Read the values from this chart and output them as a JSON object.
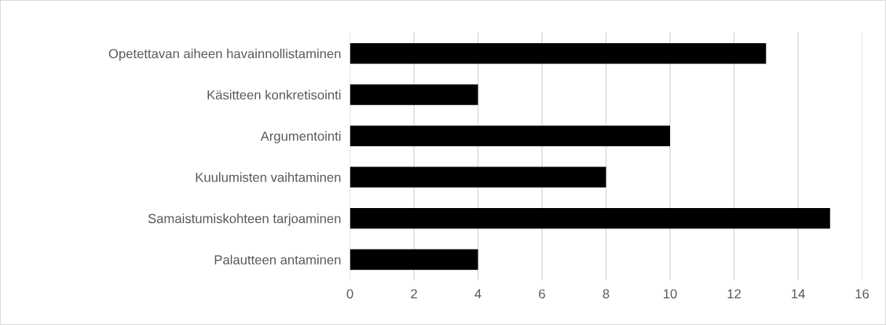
{
  "chart_data": {
    "type": "bar",
    "orientation": "horizontal",
    "categories": [
      "Opetettavan aiheen havainnollistaminen",
      "Käsitteen konkretisointi",
      "Argumentointi",
      "Kuulumisten vaihtaminen",
      "Samaistumiskohteen tarjoaminen",
      "Palautteen antaminen"
    ],
    "values": [
      13,
      4,
      10,
      8,
      15,
      4
    ],
    "color": "#000000",
    "xlim": [
      0,
      16
    ],
    "xticks": [
      0,
      2,
      4,
      6,
      8,
      10,
      12,
      14,
      16
    ],
    "grid": "x",
    "legend": false
  }
}
